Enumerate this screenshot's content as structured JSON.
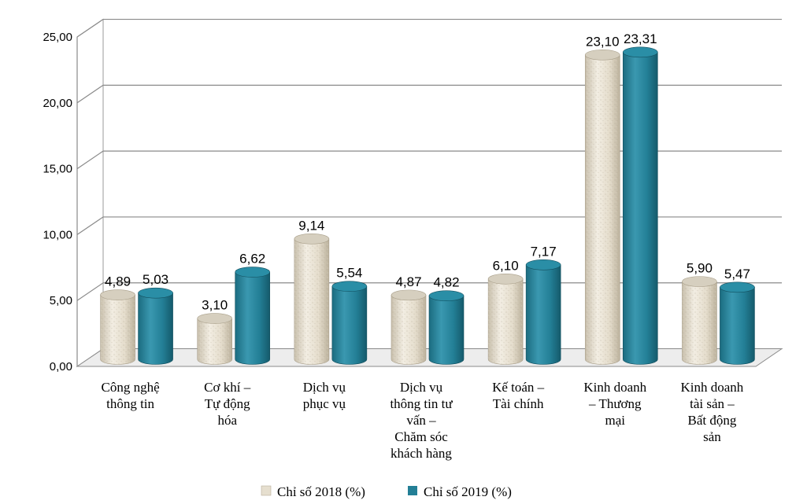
{
  "chart_data": {
    "type": "bar",
    "title": "",
    "xlabel": "",
    "ylabel": "",
    "categories": [
      [
        "Công nghệ",
        "thông tin"
      ],
      [
        "Cơ khí –",
        "Tự động",
        "hóa"
      ],
      [
        "Dịch vụ",
        "phục vụ"
      ],
      [
        "Dịch vụ",
        "thông tin tư",
        "vấn –",
        "Chăm sóc",
        "khách hàng"
      ],
      [
        "Kế toán –",
        "Tài chính"
      ],
      [
        "Kinh doanh",
        "– Thương",
        "mại"
      ],
      [
        "Kinh doanh",
        "tài sản –",
        "Bất động",
        "sản"
      ]
    ],
    "series": [
      {
        "name": "Chỉ số 2018 (%)",
        "values": [
          4.89,
          3.1,
          9.14,
          4.87,
          6.1,
          23.1,
          5.9
        ],
        "labels": [
          "4,89",
          "3,10",
          "9,14",
          "4,87",
          "6,10",
          "23,10",
          "5,90"
        ],
        "color": "#e6dfcf"
      },
      {
        "name": "Chỉ số 2019 (%)",
        "values": [
          5.03,
          6.62,
          5.54,
          4.82,
          7.17,
          23.31,
          5.47
        ],
        "labels": [
          "5,03",
          "6,62",
          "5,54",
          "4,82",
          "7,17",
          "23,31",
          "5,47"
        ],
        "color": "#237f96"
      }
    ],
    "yticks": [
      "0,00",
      "5,00",
      "10,00",
      "15,00",
      "20,00",
      "25,00"
    ],
    "ylim": [
      0,
      25
    ],
    "grid": true,
    "legend": "bottom"
  }
}
